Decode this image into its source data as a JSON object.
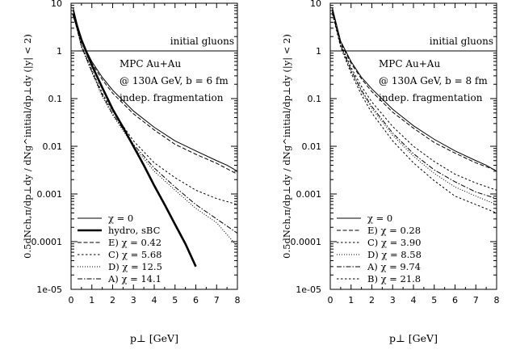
{
  "chart_data": [
    {
      "type": "line",
      "xlabel": "p⊥ [GeV]",
      "ylabel": "0.5dNch,π/dp⊥dy / dNg^initial/dp⊥dy (|y| < 2)",
      "xlim": [
        0,
        8
      ],
      "ylim": [
        1e-05,
        10
      ],
      "yscale": "log",
      "x_ticks": [
        "0",
        "1",
        "2",
        "3",
        "4",
        "5",
        "6",
        "7",
        "8"
      ],
      "y_ticks": [
        "1e-05",
        "0.0001",
        "0.001",
        "0.01",
        "0.1",
        "1",
        "10"
      ],
      "annotation_lines": [
        "MPC Au+Au",
        "@ 130A GeV, b = 6 fm",
        "indep. fragmentation"
      ],
      "reference_line": {
        "label": "initial gluons",
        "y": 1
      },
      "legend_position": "bottom-left",
      "series": [
        {
          "name": "χ = 0",
          "style": "solid",
          "x": [
            0.1,
            0.5,
            1,
            1.5,
            2,
            3,
            4,
            5,
            6,
            7,
            7.5,
            8
          ],
          "values": [
            8,
            1.6,
            0.6,
            0.28,
            0.15,
            0.055,
            0.025,
            0.013,
            0.008,
            0.005,
            0.004,
            0.003
          ]
        },
        {
          "name": "hydro, sBC",
          "style": "thick",
          "x": [
            0.1,
            0.5,
            1,
            1.5,
            2,
            2.5,
            3,
            3.5,
            4,
            4.5,
            5,
            5.5,
            6
          ],
          "values": [
            6,
            1.7,
            0.5,
            0.17,
            0.06,
            0.025,
            0.01,
            0.004,
            0.0015,
            0.0006,
            0.00023,
            9e-05,
            3e-05
          ]
        },
        {
          "name": "E) χ = 0.42",
          "style": "dashed",
          "x": [
            0.1,
            0.5,
            1,
            1.5,
            2,
            3,
            4,
            5,
            6,
            7,
            8
          ],
          "values": [
            7,
            1.5,
            0.55,
            0.25,
            0.13,
            0.048,
            0.022,
            0.011,
            0.0068,
            0.0044,
            0.0026
          ]
        },
        {
          "name": "C) χ = 5.68",
          "style": "dotted-dashed",
          "x": [
            0.1,
            0.5,
            1,
            1.5,
            2,
            3,
            4,
            5,
            6,
            7,
            8
          ],
          "values": [
            6,
            1.3,
            0.4,
            0.13,
            0.055,
            0.013,
            0.0045,
            0.0022,
            0.0012,
            0.0008,
            0.0006
          ]
        },
        {
          "name": "D) χ = 12.5",
          "style": "dotted",
          "x": [
            0.1,
            0.5,
            1,
            1.5,
            2,
            3,
            4,
            5,
            6,
            7,
            8
          ],
          "values": [
            6,
            1.2,
            0.35,
            0.11,
            0.045,
            0.01,
            0.003,
            0.0012,
            0.0005,
            0.00025,
            8e-05
          ]
        },
        {
          "name": "A) χ = 14.1",
          "style": "dash-dot",
          "x": [
            0.1,
            0.5,
            1,
            1.5,
            2,
            3,
            4,
            5,
            6,
            7,
            8
          ],
          "values": [
            6,
            1.25,
            0.37,
            0.12,
            0.048,
            0.011,
            0.0035,
            0.0014,
            0.0006,
            0.0003,
            0.00015
          ]
        }
      ]
    },
    {
      "type": "line",
      "xlabel": "p⊥ [GeV]",
      "ylabel": "0.5dNch,π/dp⊥dy / dNg^initial/dp⊥dy (|y| < 2)",
      "xlim": [
        0,
        8
      ],
      "ylim": [
        1e-05,
        10
      ],
      "yscale": "log",
      "x_ticks": [
        "0",
        "1",
        "2",
        "3",
        "4",
        "5",
        "6",
        "7",
        "8"
      ],
      "y_ticks": [
        "1e-05",
        "0.0001",
        "0.001",
        "0.01",
        "0.1",
        "1",
        "10"
      ],
      "annotation_lines": [
        "MPC Au+Au",
        "@ 130A GeV, b = 8 fm",
        "indep. fragmentation"
      ],
      "reference_line": {
        "label": "initial gluons",
        "y": 1
      },
      "legend_position": "bottom-left",
      "series": [
        {
          "name": "χ = 0",
          "style": "solid",
          "x": [
            0.1,
            0.5,
            1,
            1.5,
            2,
            3,
            4,
            5,
            6,
            7,
            7.5,
            8
          ],
          "values": [
            8,
            1.6,
            0.6,
            0.28,
            0.16,
            0.06,
            0.027,
            0.014,
            0.008,
            0.005,
            0.004,
            0.003
          ]
        },
        {
          "name": "E) χ = 0.28",
          "style": "dashed",
          "x": [
            0.1,
            0.5,
            1,
            1.5,
            2,
            3,
            4,
            5,
            6,
            7,
            8
          ],
          "values": [
            7.5,
            1.5,
            0.55,
            0.26,
            0.14,
            0.052,
            0.024,
            0.012,
            0.0072,
            0.0045,
            0.0031
          ]
        },
        {
          "name": "C) χ = 3.90",
          "style": "dotted-dashed",
          "x": [
            0.1,
            0.5,
            1,
            1.5,
            2,
            3,
            4,
            5,
            6,
            7,
            8
          ],
          "values": [
            7,
            1.4,
            0.45,
            0.18,
            0.085,
            0.026,
            0.01,
            0.0048,
            0.0026,
            0.0017,
            0.0012
          ]
        },
        {
          "name": "D) χ = 8.58",
          "style": "dotted",
          "x": [
            0.1,
            0.5,
            1,
            1.5,
            2,
            3,
            4,
            5,
            6,
            7,
            8
          ],
          "values": [
            6.5,
            1.3,
            0.38,
            0.14,
            0.062,
            0.017,
            0.0062,
            0.0027,
            0.0014,
            0.0009,
            0.0006
          ]
        },
        {
          "name": "A) χ = 9.74",
          "style": "dash-dot",
          "x": [
            0.1,
            0.5,
            1,
            1.5,
            2,
            3,
            4,
            5,
            6,
            7,
            8
          ],
          "values": [
            6.5,
            1.3,
            0.4,
            0.15,
            0.068,
            0.019,
            0.007,
            0.0032,
            0.0018,
            0.0011,
            0.0008
          ]
        },
        {
          "name": "B) χ = 21.8",
          "style": "dotted-dashed",
          "x": [
            0.1,
            0.5,
            1,
            1.5,
            2,
            3,
            4,
            5,
            6,
            7,
            8
          ],
          "values": [
            6,
            1.2,
            0.34,
            0.12,
            0.05,
            0.013,
            0.0045,
            0.0019,
            0.0009,
            0.0006,
            0.0004
          ]
        }
      ]
    }
  ]
}
